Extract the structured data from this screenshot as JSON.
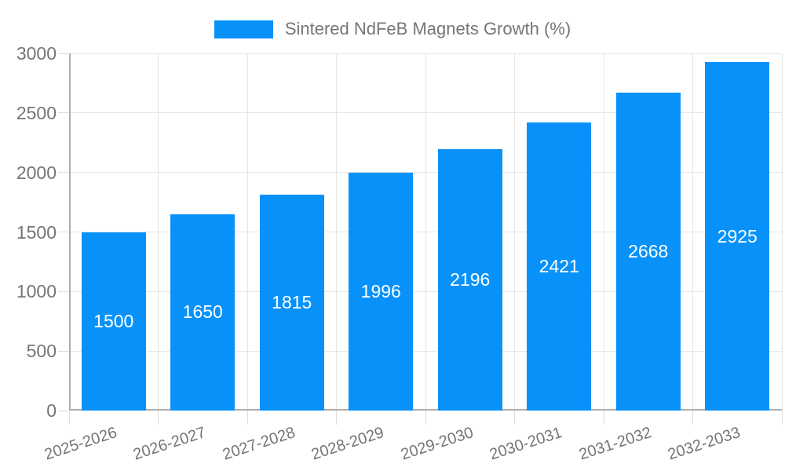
{
  "chart_data": {
    "type": "bar",
    "title": "",
    "legend": "Sintered NdFeB Magnets Growth (%)",
    "legend_position": "top",
    "categories": [
      "2025-2026",
      "2026-2027",
      "2027-2028",
      "2028-2029",
      "2029-2030",
      "2030-2031",
      "2031-2032",
      "2032-2033"
    ],
    "values": [
      1500,
      1650,
      1815,
      1996,
      2196,
      2421,
      2668,
      2925
    ],
    "xlabel": "",
    "ylabel": "",
    "ylim": [
      0,
      3000
    ],
    "yticks": [
      0,
      500,
      1000,
      1500,
      2000,
      2500,
      3000
    ],
    "grid": true,
    "x_label_rotation_deg": -18,
    "colors": {
      "bar": "#0892f9",
      "bar_value_text": "#ffffff",
      "axis_text": "#757575",
      "gridline": "#e6e6e6",
      "tick_mark": "#dcdcdc",
      "axis_line": "#adadad",
      "background": "#ffffff"
    }
  }
}
